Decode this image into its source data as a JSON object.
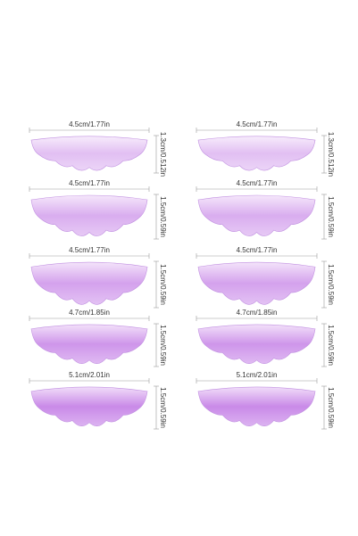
{
  "columns": [
    [
      {
        "width": "4.5cm/1.77in",
        "height": "1.3cm/0.512in"
      },
      {
        "width": "4.5cm/1.77in",
        "height": "1.5cm/0.59in"
      },
      {
        "width": "4.5cm/1.77in",
        "height": "1.5cm/0.59in"
      },
      {
        "width": "4.7cm/1.85in",
        "height": "1.5cm/0.59in"
      },
      {
        "width": "5.1cm/2.01in",
        "height": "1.5cm/0.59in"
      }
    ],
    [
      {
        "width": "4.5cm/1.77in",
        "height": "1.3cm/0.512in"
      },
      {
        "width": "4.5cm/1.77in",
        "height": "1.5cm/0.59in"
      },
      {
        "width": "4.5cm/1.77in",
        "height": "1.5cm/0.59in"
      },
      {
        "width": "4.7cm/1.85in",
        "height": "1.5cm/0.59in"
      },
      {
        "width": "5.1cm/2.01in",
        "height": "1.5cm/0.59in"
      }
    ]
  ]
}
